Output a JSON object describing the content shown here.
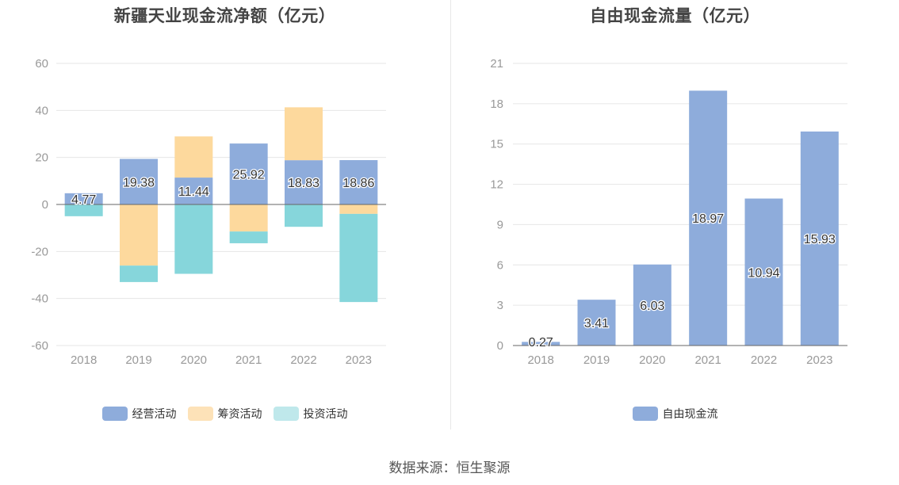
{
  "source_text": "数据来源：恒生聚源",
  "colors": {
    "operating": "#8eacdb",
    "financing": "#fdd99d",
    "investing": "#86d6db",
    "fcf": "#8eacdb",
    "grid": "#e6e6e6",
    "axis": "#666666"
  },
  "chart_data": [
    {
      "type": "bar",
      "stacked": true,
      "title": "新疆天业现金流净额（亿元）",
      "categories": [
        "2018",
        "2019",
        "2020",
        "2021",
        "2022",
        "2023"
      ],
      "ylim": [
        -60,
        60
      ],
      "yticks": [
        60,
        40,
        20,
        0,
        -20,
        -40,
        -60
      ],
      "grid": true,
      "legend_position": "bottom",
      "series": [
        {
          "name": "经营活动",
          "values": [
            4.77,
            19.38,
            11.44,
            25.92,
            18.83,
            18.86
          ],
          "labels": [
            "4.77",
            "19.38",
            "11.44",
            "25.92",
            "18.83",
            "18.86"
          ]
        },
        {
          "name": "筹资活动",
          "values": [
            0,
            -26,
            17.5,
            -11.5,
            22.5,
            -4
          ]
        },
        {
          "name": "投资活动",
          "values": [
            -5,
            -7,
            -29.5,
            -5,
            -9.5,
            -37.5
          ]
        }
      ]
    },
    {
      "type": "bar",
      "title": "自由现金流量（亿元）",
      "categories": [
        "2018",
        "2019",
        "2020",
        "2021",
        "2022",
        "2023"
      ],
      "ylim": [
        0,
        21
      ],
      "yticks": [
        21,
        18,
        15,
        12,
        9,
        6,
        3,
        0
      ],
      "grid": true,
      "legend_position": "bottom",
      "series": [
        {
          "name": "自由现金流",
          "values": [
            0.27,
            3.41,
            6.03,
            18.97,
            10.94,
            15.93
          ],
          "labels": [
            "0.27",
            "3.41",
            "6.03",
            "18.97",
            "10.94",
            "15.93"
          ]
        }
      ]
    }
  ]
}
